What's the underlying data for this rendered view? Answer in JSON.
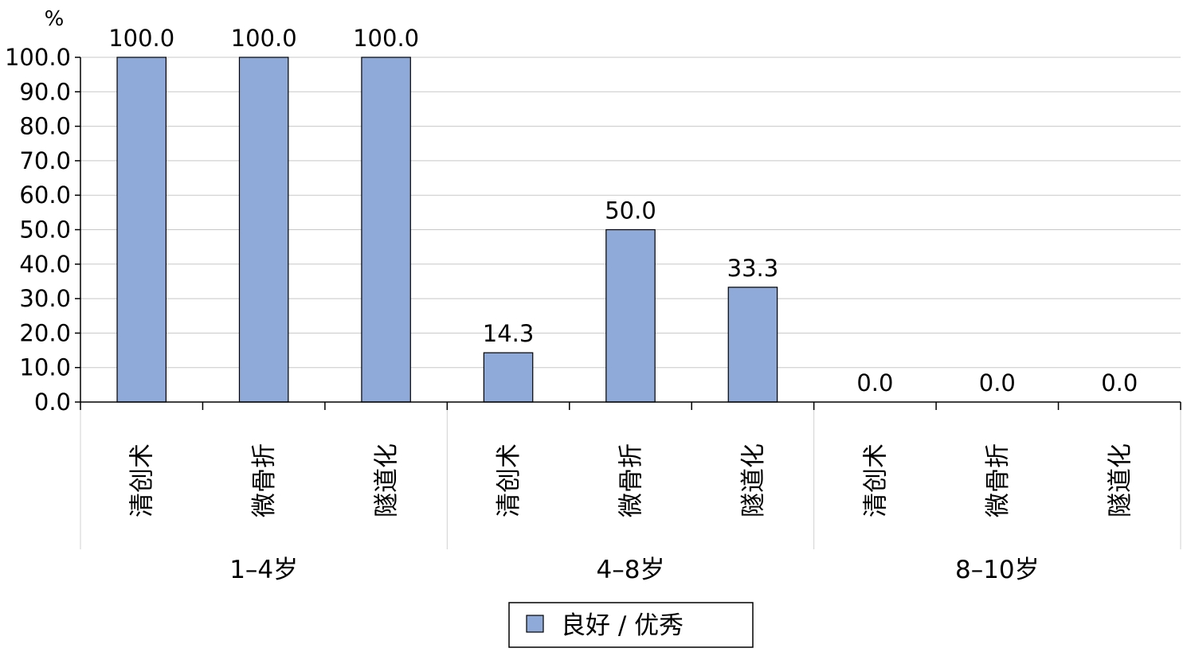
{
  "chart_data": {
    "type": "bar",
    "ylabel": "%",
    "ylim": [
      0,
      100
    ],
    "y_ticks": [
      "0.0",
      "10.0",
      "20.0",
      "30.0",
      "40.0",
      "50.0",
      "60.0",
      "70.0",
      "80.0",
      "90.0",
      "100.0"
    ],
    "grid": true,
    "legend_position": "bottom-center",
    "groups": [
      {
        "label": "1–4岁",
        "categories": [
          "清创术",
          "微骨折",
          "隧道化"
        ],
        "values": [
          100.0,
          100.0,
          100.0
        ],
        "value_labels": [
          "100.0",
          "100.0",
          "100.0"
        ]
      },
      {
        "label": "4–8岁",
        "categories": [
          "清创术",
          "微骨折",
          "隧道化"
        ],
        "values": [
          14.3,
          50.0,
          33.3
        ],
        "value_labels": [
          "14.3",
          "50.0",
          "33.3"
        ]
      },
      {
        "label": "8–10岁",
        "categories": [
          "清创术",
          "微骨折",
          "隧道化"
        ],
        "values": [
          0.0,
          0.0,
          0.0
        ],
        "value_labels": [
          "0.0",
          "0.0",
          "0.0"
        ]
      }
    ],
    "series": [
      {
        "name": "良好 / 优秀",
        "color": "#8faad8"
      }
    ]
  }
}
